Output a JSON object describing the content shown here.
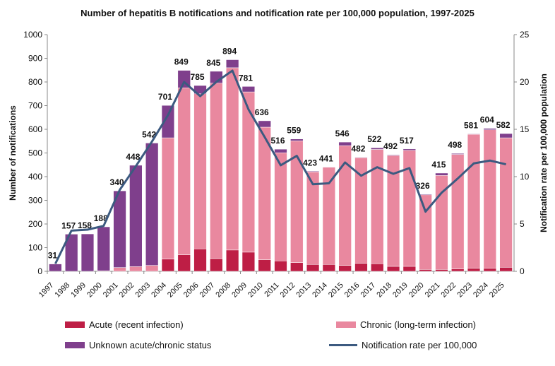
{
  "chart_data": {
    "type": "bar",
    "title": "Number of hepatitis B notifications and notification rate per 100,000 population, 1997-2025",
    "ylabel": "Number of notifications",
    "y2label": "Notification rate per 100,000 population",
    "ylim": [
      0,
      1000
    ],
    "y2lim": [
      0,
      25
    ],
    "yticks": [
      "0",
      "100",
      "200",
      "300",
      "400",
      "500",
      "600",
      "700",
      "800",
      "900",
      "1000"
    ],
    "y2ticks": [
      "0",
      "5",
      "10",
      "15",
      "20",
      "25"
    ],
    "categories": [
      "1997",
      "1998",
      "1999",
      "2000",
      "2001",
      "2002",
      "2003",
      "2004",
      "2005",
      "2006",
      "2007",
      "2008",
      "2009",
      "2010",
      "2011",
      "2012",
      "2013",
      "2014",
      "2015",
      "2016",
      "2017",
      "2018",
      "2019",
      "2020",
      "2021",
      "2022",
      "2023",
      "2024",
      "2025"
    ],
    "totals": [
      31,
      157,
      158,
      188,
      340,
      448,
      542,
      701,
      849,
      785,
      845,
      894,
      781,
      636,
      516,
      559,
      423,
      441,
      546,
      482,
      522,
      492,
      517,
      326,
      415,
      498,
      581,
      604,
      582
    ],
    "series": [
      {
        "name": "Acute (recent infection)",
        "color": "#be1e45",
        "values": [
          0,
          0,
          0,
          0,
          0,
          0,
          0,
          52,
          70,
          95,
          54,
          90,
          81,
          49,
          44,
          37,
          29,
          29,
          25,
          34,
          32,
          21,
          21,
          8,
          8,
          10,
          13,
          13,
          17
        ]
      },
      {
        "name": "Chronic (long-term infection)",
        "color": "#e9889f",
        "values": [
          0,
          0,
          0,
          2,
          16,
          20,
          25,
          512,
          705,
          655,
          741,
          770,
          677,
          560,
          457,
          514,
          391,
          411,
          506,
          446,
          483,
          468,
          490,
          315,
          397,
          484,
          566,
          585,
          547
        ]
      },
      {
        "name": "Unknown acute/chronic status",
        "color": "#7f3f8c",
        "values": [
          31,
          157,
          158,
          186,
          324,
          428,
          517,
          137,
          74,
          35,
          50,
          34,
          23,
          27,
          15,
          8,
          3,
          1,
          15,
          2,
          7,
          3,
          6,
          3,
          10,
          4,
          2,
          6,
          18
        ]
      },
      {
        "name": "Notification rate per 100,000",
        "type": "line",
        "axis": "right",
        "color": "#3c5a80",
        "values": [
          0.8,
          4.3,
          4.4,
          4.8,
          8.6,
          11.1,
          13.7,
          16.5,
          20.0,
          18.5,
          20.0,
          21.2,
          17.1,
          14.2,
          11.2,
          12.2,
          9.2,
          9.3,
          11.5,
          10.1,
          11.0,
          10.3,
          10.9,
          6.3,
          8.3,
          9.8,
          11.4,
          11.7,
          11.3
        ]
      }
    ],
    "legend": "bottom",
    "grid": false
  }
}
